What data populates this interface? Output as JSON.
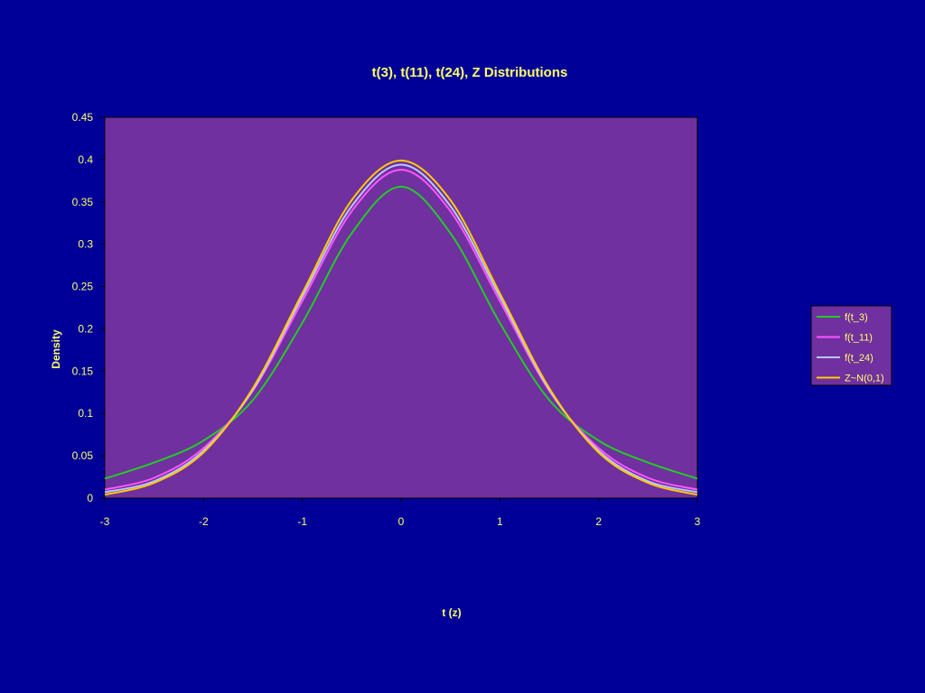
{
  "chart_data": {
    "type": "line",
    "title": "t(3), t(11), t(24), Z Distributions",
    "xlabel": "t (z)",
    "ylabel": "Density",
    "xlim": [
      -3,
      3
    ],
    "ylim": [
      0,
      0.45
    ],
    "xticks": [
      -3,
      -2,
      -1,
      0,
      1,
      2,
      3
    ],
    "xtick_labels": [
      "-3",
      "-2",
      "-1",
      "0",
      "1",
      "2",
      "3"
    ],
    "yticks": [
      0,
      0.05,
      0.1,
      0.15,
      0.2,
      0.25,
      0.3,
      0.35,
      0.4,
      0.45
    ],
    "ytick_labels": [
      "0",
      "0.05",
      "0.1",
      "0.15",
      "0.2",
      "0.25",
      "0.3",
      "0.35",
      "0.4",
      "0.45"
    ],
    "grid": false,
    "legend_position": "right",
    "x": [
      -3,
      -2.5,
      -2,
      -1.5,
      -1,
      -0.5,
      0,
      0.5,
      1,
      1.5,
      2,
      2.5,
      3
    ],
    "series": [
      {
        "name": "f(t_3)",
        "color": "#22cc22",
        "values": [
          0.023,
          0.042,
          0.068,
          0.116,
          0.207,
          0.313,
          0.368,
          0.313,
          0.207,
          0.116,
          0.068,
          0.042,
          0.023
        ]
      },
      {
        "name": "f(t_11)",
        "color": "#ff55ff",
        "values": [
          0.01,
          0.024,
          0.059,
          0.127,
          0.233,
          0.339,
          0.388,
          0.339,
          0.233,
          0.127,
          0.059,
          0.024,
          0.01
        ]
      },
      {
        "name": "f(t_24)",
        "color": "#b8c8ff",
        "values": [
          0.007,
          0.02,
          0.056,
          0.128,
          0.238,
          0.345,
          0.394,
          0.345,
          0.238,
          0.128,
          0.056,
          0.02,
          0.007
        ]
      },
      {
        "name": "Z~N(0,1)",
        "color": "#ffcc00",
        "values": [
          0.004,
          0.018,
          0.054,
          0.13,
          0.242,
          0.352,
          0.399,
          0.352,
          0.242,
          0.13,
          0.054,
          0.018,
          0.004
        ]
      }
    ],
    "colors": {
      "page_background": "#000099",
      "plot_background": "#7030a0",
      "text": "#ffff66",
      "axis": "#000000",
      "legend_background": "#7030a0"
    }
  }
}
